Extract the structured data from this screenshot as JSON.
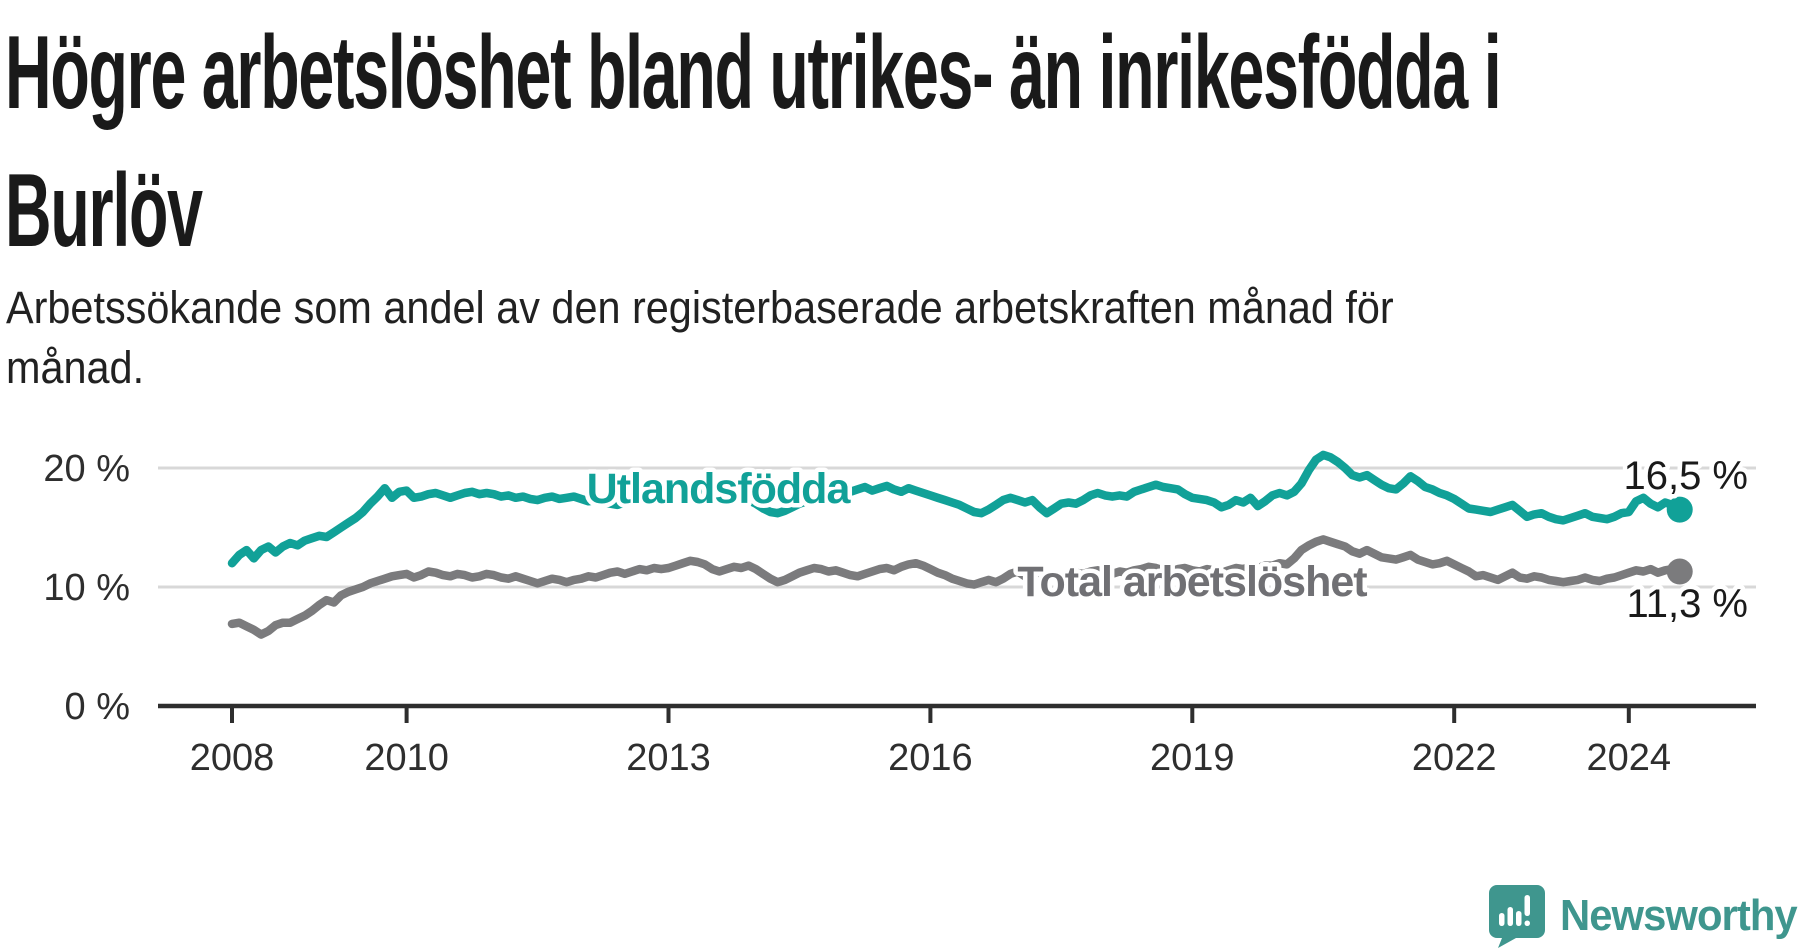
{
  "header": {
    "title": "Högre arbetslöshet bland utrikes- än inrikesfödda i\nBurlöv",
    "subtitle": "Arbetssökande som andel av den registerbaserade arbetskraften månad för\nmånad."
  },
  "chart_data": {
    "type": "line",
    "unit": "%",
    "frequency": "monthly",
    "start": "2008-01",
    "end": "2024-08",
    "grid": "horizontal",
    "ylim": [
      0,
      22
    ],
    "yticks": [
      {
        "value": 0,
        "label": "0 %"
      },
      {
        "value": 10,
        "label": "10 %"
      },
      {
        "value": 20,
        "label": "20 %"
      }
    ],
    "xticks": [
      {
        "year": 2008,
        "label": "2008"
      },
      {
        "year": 2010,
        "label": "2010"
      },
      {
        "year": 2013,
        "label": "2013"
      },
      {
        "year": 2016,
        "label": "2016"
      },
      {
        "year": 2019,
        "label": "2019"
      },
      {
        "year": 2022,
        "label": "2022"
      },
      {
        "year": 2024,
        "label": "2024"
      }
    ],
    "colors": {
      "grid": "#d8d8d8",
      "axis": "#2e2e2e",
      "value_label": "#1a1a1a"
    },
    "series": [
      {
        "name": "Utlandsfödda",
        "color": "#11A198",
        "label_color": "#11A198",
        "end_label": "16,5 %",
        "end_value": 16.5,
        "values": [
          12.0,
          12.7,
          13.1,
          12.4,
          13.1,
          13.4,
          12.9,
          13.4,
          13.7,
          13.5,
          13.9,
          14.1,
          14.3,
          14.2,
          14.6,
          15.0,
          15.4,
          15.8,
          16.3,
          17.0,
          17.6,
          18.3,
          17.5,
          18.0,
          18.1,
          17.5,
          17.6,
          17.8,
          17.9,
          17.7,
          17.5,
          17.7,
          17.9,
          18.0,
          17.8,
          17.9,
          17.8,
          17.6,
          17.7,
          17.5,
          17.6,
          17.4,
          17.3,
          17.5,
          17.6,
          17.4,
          17.5,
          17.6,
          17.4,
          17.2,
          17.3,
          17.1,
          17.0,
          16.9,
          17.1,
          17.2,
          17.4,
          17.3,
          17.2,
          17.4,
          17.5,
          17.7,
          17.9,
          18.1,
          17.9,
          17.8,
          17.6,
          17.8,
          17.7,
          17.5,
          17.4,
          17.3,
          17.0,
          16.6,
          16.3,
          16.2,
          16.4,
          16.7,
          17.0,
          17.2,
          17.4,
          17.6,
          17.8,
          18.0,
          18.1,
          18.0,
          18.2,
          18.4,
          18.1,
          18.3,
          18.5,
          18.2,
          18.0,
          18.3,
          18.1,
          17.9,
          17.7,
          17.5,
          17.3,
          17.1,
          16.9,
          16.6,
          16.3,
          16.2,
          16.5,
          16.9,
          17.3,
          17.5,
          17.3,
          17.1,
          17.3,
          16.7,
          16.2,
          16.6,
          17.0,
          17.1,
          17.0,
          17.3,
          17.7,
          17.9,
          17.7,
          17.6,
          17.7,
          17.6,
          18.0,
          18.2,
          18.4,
          18.6,
          18.4,
          18.3,
          18.2,
          17.8,
          17.5,
          17.4,
          17.3,
          17.1,
          16.7,
          16.9,
          17.3,
          17.1,
          17.5,
          16.8,
          17.2,
          17.7,
          17.9,
          17.7,
          18.0,
          18.7,
          19.8,
          20.7,
          21.1,
          20.9,
          20.5,
          20.0,
          19.4,
          19.2,
          19.4,
          19.0,
          18.6,
          18.3,
          18.2,
          18.7,
          19.3,
          18.9,
          18.4,
          18.2,
          17.9,
          17.7,
          17.4,
          17.0,
          16.6,
          16.5,
          16.4,
          16.3,
          16.5,
          16.7,
          16.9,
          16.4,
          15.9,
          16.1,
          16.2,
          15.9,
          15.7,
          15.6,
          15.8,
          16.0,
          16.2,
          15.9,
          15.8,
          15.7,
          15.9,
          16.2,
          16.3,
          17.2,
          17.5,
          17.0,
          16.7,
          17.1,
          16.9,
          16.5
        ]
      },
      {
        "name": "Total arbetslöshet",
        "color": "#7B7B7D",
        "label_color": "#707074",
        "end_label": "11,3 %",
        "end_value": 11.3,
        "values": [
          6.9,
          7.0,
          6.7,
          6.4,
          6.0,
          6.3,
          6.8,
          7.0,
          7.0,
          7.3,
          7.6,
          8.0,
          8.5,
          8.9,
          8.7,
          9.3,
          9.6,
          9.8,
          10.0,
          10.3,
          10.5,
          10.7,
          10.9,
          11.0,
          11.1,
          10.8,
          11.0,
          11.3,
          11.2,
          11.0,
          10.9,
          11.1,
          11.0,
          10.8,
          10.9,
          11.1,
          11.0,
          10.8,
          10.7,
          10.9,
          10.7,
          10.5,
          10.3,
          10.5,
          10.7,
          10.6,
          10.4,
          10.6,
          10.7,
          10.9,
          10.8,
          11.0,
          11.2,
          11.3,
          11.1,
          11.3,
          11.5,
          11.4,
          11.6,
          11.5,
          11.6,
          11.8,
          12.0,
          12.2,
          12.1,
          11.9,
          11.5,
          11.3,
          11.5,
          11.7,
          11.6,
          11.8,
          11.5,
          11.1,
          10.7,
          10.4,
          10.6,
          10.9,
          11.2,
          11.4,
          11.6,
          11.5,
          11.3,
          11.4,
          11.2,
          11.0,
          10.9,
          11.1,
          11.3,
          11.5,
          11.6,
          11.4,
          11.7,
          11.9,
          12.0,
          11.8,
          11.5,
          11.2,
          11.0,
          10.7,
          10.5,
          10.3,
          10.2,
          10.4,
          10.6,
          10.4,
          10.7,
          11.1,
          11.3,
          10.9,
          10.7,
          10.8,
          11.0,
          11.1,
          10.9,
          11.0,
          11.2,
          11.1,
          11.3,
          11.4,
          11.2,
          11.1,
          11.3,
          11.2,
          11.4,
          11.5,
          11.7,
          11.6,
          11.4,
          11.3,
          11.5,
          11.6,
          11.4,
          11.3,
          11.5,
          11.4,
          11.2,
          11.4,
          11.6,
          11.5,
          11.7,
          11.6,
          11.8,
          11.8,
          12.0,
          11.9,
          12.4,
          13.1,
          13.5,
          13.8,
          14.0,
          13.8,
          13.6,
          13.4,
          13.0,
          12.8,
          13.1,
          12.8,
          12.5,
          12.4,
          12.3,
          12.5,
          12.7,
          12.3,
          12.1,
          11.9,
          12.0,
          12.2,
          11.9,
          11.6,
          11.3,
          10.9,
          11.0,
          10.8,
          10.6,
          10.9,
          11.2,
          10.8,
          10.7,
          10.9,
          10.8,
          10.6,
          10.5,
          10.4,
          10.5,
          10.6,
          10.8,
          10.6,
          10.5,
          10.7,
          10.8,
          11.0,
          11.2,
          11.4,
          11.3,
          11.5,
          11.2,
          11.4,
          11.5,
          11.3
        ]
      }
    ]
  },
  "footer": {
    "brand": "Newsworthy",
    "brand_color": "#3F968E",
    "logo_icon": "newsworthy-speech-bubble-chart-icon"
  }
}
